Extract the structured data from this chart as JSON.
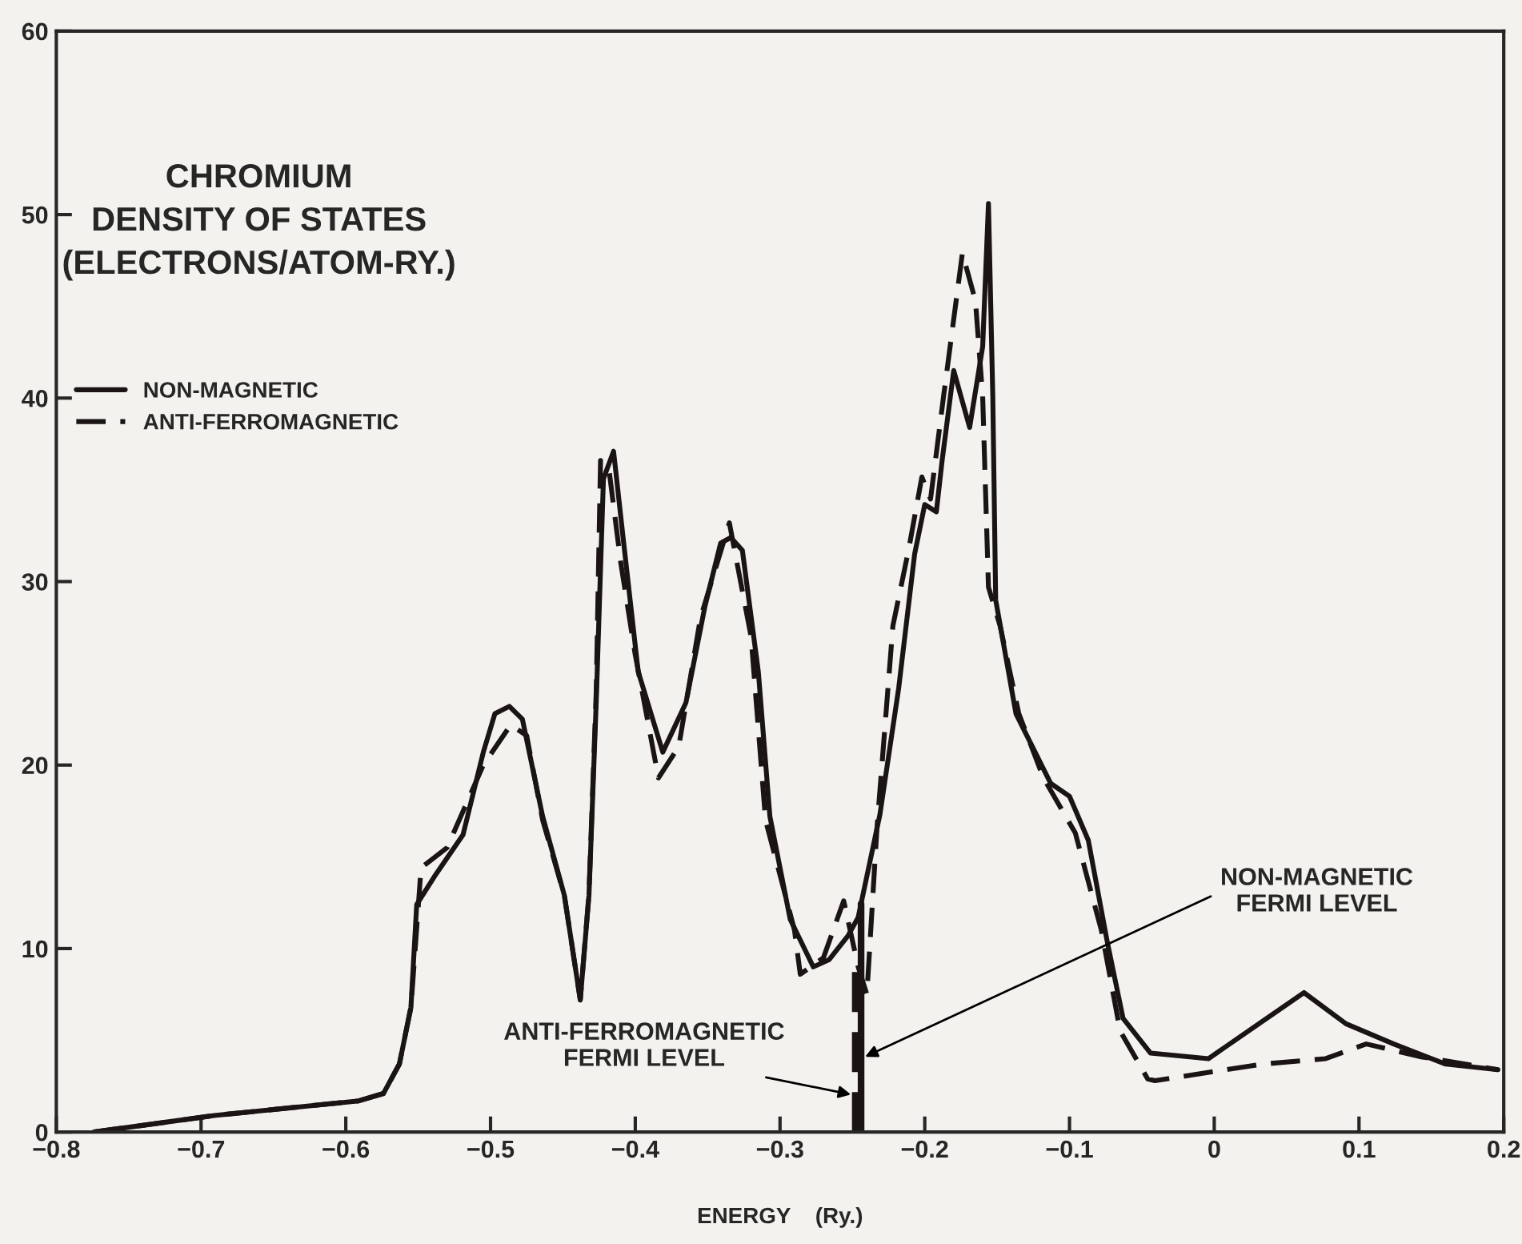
{
  "chart_data": {
    "type": "line",
    "title": "CHROMIUM\nDENSITY OF STATES\n(ELECTRONS/ATOM-RY.)",
    "xlabel": "ENERGY    (Ry.)",
    "xlim": [
      -0.8,
      0.2
    ],
    "ylim": [
      0,
      60
    ],
    "xticks": [
      {
        "value": -0.8,
        "label": "−0.8"
      },
      {
        "value": -0.7,
        "label": "−0.7"
      },
      {
        "value": -0.6,
        "label": "−0.6"
      },
      {
        "value": -0.5,
        "label": "−0.5"
      },
      {
        "value": -0.4,
        "label": "−0.4"
      },
      {
        "value": -0.3,
        "label": "−0.3"
      },
      {
        "value": -0.2,
        "label": "−0.2"
      },
      {
        "value": -0.1,
        "label": "−0.1"
      },
      0,
      0.1,
      0.2
    ],
    "yticks": [
      0,
      10,
      20,
      30,
      40,
      50,
      60
    ],
    "grid": false,
    "legend": "top left",
    "marker": "none",
    "series": [
      {
        "name": "NON-MAGNETIC",
        "color": "#1a1414",
        "line_style": "solid",
        "x": [
          -0.774,
          -0.691,
          -0.591,
          -0.574,
          -0.563,
          -0.555,
          -0.551,
          -0.539,
          -0.519,
          -0.505,
          -0.497,
          -0.487,
          -0.478,
          -0.464,
          -0.449,
          -0.438,
          -0.432,
          -0.427,
          -0.422,
          -0.415,
          -0.408,
          -0.398,
          -0.381,
          -0.365,
          -0.352,
          -0.341,
          -0.334,
          -0.326,
          -0.315,
          -0.307,
          -0.293,
          -0.277,
          -0.266,
          -0.253,
          -0.246,
          -0.231,
          -0.218,
          -0.207,
          -0.2,
          -0.192,
          -0.188,
          -0.18,
          -0.169,
          -0.16,
          -0.156,
          -0.153,
          -0.151,
          -0.137,
          -0.113,
          -0.1,
          -0.087,
          -0.074,
          -0.063,
          -0.044,
          -0.004,
          0.062,
          0.091,
          0.124,
          0.16,
          0.196
        ],
        "values": [
          0,
          0.9,
          1.7,
          2.1,
          3.7,
          6.8,
          12.4,
          13.9,
          16.2,
          20.7,
          22.8,
          23.2,
          22.5,
          17.2,
          12.9,
          7.2,
          12.9,
          23.4,
          35.6,
          37.1,
          32.1,
          25.1,
          20.7,
          23.4,
          28.6,
          32.1,
          32.4,
          31.7,
          25.1,
          17.2,
          11.6,
          9.0,
          9.4,
          10.7,
          11.7,
          17.3,
          24.2,
          31.5,
          34.2,
          33.8,
          36.6,
          41.5,
          38.4,
          42.8,
          50.6,
          40.1,
          29.0,
          22.8,
          19.0,
          18.3,
          15.9,
          10.4,
          6.2,
          4.3,
          4.0,
          7.6,
          5.9,
          4.8,
          3.7,
          3.4
        ]
      },
      {
        "name": "ANTI-FERROMAGNETIC",
        "color": "#1a1414",
        "line_style": "dashed",
        "x": [
          -0.774,
          -0.691,
          -0.591,
          -0.574,
          -0.563,
          -0.555,
          -0.548,
          -0.53,
          -0.505,
          -0.486,
          -0.475,
          -0.464,
          -0.449,
          -0.438,
          -0.432,
          -0.427,
          -0.424,
          -0.418,
          -0.41,
          -0.4,
          -0.384,
          -0.37,
          -0.355,
          -0.335,
          -0.32,
          -0.31,
          -0.29,
          -0.286,
          -0.27,
          -0.256,
          -0.246,
          -0.24,
          -0.233,
          -0.222,
          -0.211,
          -0.202,
          -0.196,
          -0.187,
          -0.174,
          -0.165,
          -0.16,
          -0.156,
          -0.148,
          -0.135,
          -0.118,
          -0.096,
          -0.078,
          -0.065,
          -0.046,
          -0.041,
          0.033,
          0.077,
          0.105,
          0.143,
          0.196
        ],
        "values": [
          0,
          0.9,
          1.7,
          2.1,
          3.7,
          6.8,
          14.4,
          15.5,
          20.0,
          22.2,
          21.6,
          17.0,
          12.9,
          7.2,
          13.0,
          24.0,
          36.6,
          36.0,
          31.0,
          26.0,
          19.3,
          21.0,
          28.0,
          33.2,
          27.0,
          17.0,
          11.0,
          8.6,
          9.5,
          12.6,
          9.0,
          7.5,
          16.6,
          27.6,
          31.8,
          35.7,
          34.5,
          40.1,
          47.9,
          45.3,
          40.1,
          29.7,
          27.6,
          22.8,
          19.3,
          16.3,
          11.0,
          5.5,
          2.9,
          2.8,
          3.7,
          4.0,
          4.8,
          4.1,
          3.4
        ]
      }
    ],
    "ref_lines": [
      {
        "axis": "x",
        "value": -0.244,
        "line_style": "solid",
        "color": "#1a1414"
      },
      {
        "axis": "x",
        "value": -0.248,
        "line_style": "dashed",
        "color": "#1a1414"
      }
    ],
    "annotations": [
      {
        "text": "NON-MAGNETIC\nFERMI LEVEL",
        "x": -0.244,
        "y": 4
      },
      {
        "text": "ANTI-FERROMAGNETIC\nFERMI LEVEL",
        "x": -0.248,
        "y": 2
      }
    ]
  }
}
